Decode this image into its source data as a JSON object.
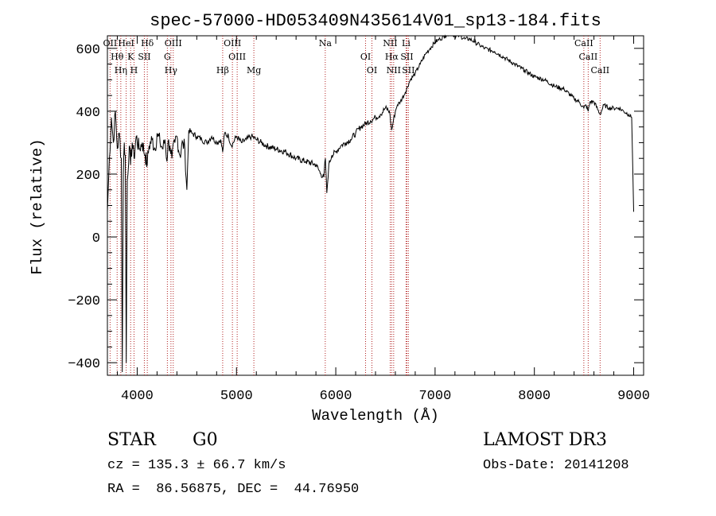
{
  "chart_data": {
    "type": "line",
    "title": "spec-57000-HD053409N435614V01_sp13-184.fits",
    "xlabel": "Wavelength (Å)",
    "ylabel": "Flux (relative)",
    "xlim": [
      3700,
      9100
    ],
    "ylim": [
      -440,
      640
    ],
    "x_ticks": [
      4000,
      5000,
      6000,
      7000,
      8000,
      9000
    ],
    "y_ticks": [
      -400,
      -200,
      0,
      200,
      400,
      600
    ],
    "x_tick_labels": [
      "4000",
      "5000",
      "6000",
      "7000",
      "8000",
      "9000"
    ],
    "y_tick_labels": [
      "−400",
      "−200",
      "0",
      "200",
      "400",
      "600"
    ],
    "series": [
      {
        "name": "spectrum",
        "x": [
          3700,
          3720,
          3740,
          3760,
          3780,
          3800,
          3820,
          3840,
          3850,
          3860,
          3870,
          3880,
          3890,
          3900,
          3920,
          3933,
          3950,
          3968,
          3990,
          4020,
          4050,
          4080,
          4101,
          4120,
          4150,
          4180,
          4200,
          4230,
          4260,
          4280,
          4300,
          4310,
          4330,
          4350,
          4380,
          4400,
          4430,
          4460,
          4480,
          4500,
          4520,
          4550,
          4600,
          4650,
          4700,
          4750,
          4800,
          4840,
          4861,
          4880,
          4920,
          4950,
          5000,
          5050,
          5100,
          5150,
          5200,
          5250,
          5300,
          5400,
          5500,
          5600,
          5700,
          5800,
          5850,
          5880,
          5895,
          5910,
          5930,
          5960,
          6000,
          6050,
          6100,
          6150,
          6200,
          6250,
          6300,
          6350,
          6400,
          6450,
          6500,
          6540,
          6563,
          6580,
          6600,
          6620,
          6650,
          6700,
          6750,
          6800,
          6850,
          6900,
          6950,
          7000,
          7050,
          7100,
          7150,
          7200,
          7250,
          7300,
          7350,
          7400,
          7450,
          7500,
          7600,
          7700,
          7800,
          7900,
          8000,
          8100,
          8200,
          8300,
          8400,
          8450,
          8498,
          8520,
          8542,
          8560,
          8600,
          8662,
          8700,
          8750,
          8800,
          8850,
          8900,
          8950,
          8980,
          9000
        ],
        "y": [
          80,
          250,
          380,
          300,
          400,
          280,
          330,
          250,
          -430,
          200,
          300,
          260,
          -400,
          180,
          290,
          230,
          300,
          250,
          320,
          280,
          300,
          260,
          230,
          290,
          310,
          280,
          330,
          300,
          280,
          310,
          240,
          300,
          290,
          250,
          300,
          320,
          260,
          300,
          280,
          150,
          340,
          330,
          320,
          310,
          300,
          320,
          300,
          310,
          270,
          330,
          320,
          290,
          320,
          300,
          310,
          320,
          310,
          300,
          290,
          280,
          270,
          250,
          240,
          230,
          200,
          190,
          250,
          140,
          230,
          260,
          270,
          290,
          300,
          310,
          330,
          350,
          360,
          370,
          380,
          390,
          410,
          400,
          340,
          370,
          400,
          420,
          430,
          460,
          500,
          520,
          550,
          580,
          600,
          620,
          630,
          640,
          650,
          640,
          640,
          630,
          630,
          620,
          610,
          600,
          590,
          570,
          550,
          530,
          510,
          500,
          480,
          470,
          440,
          430,
          410,
          420,
          400,
          430,
          430,
          390,
          420,
          410,
          410,
          410,
          400,
          390,
          380,
          80
        ],
        "color": "#000000"
      }
    ],
    "lines": [
      {
        "name": "OII",
        "wave": 3727
      },
      {
        "name": "Hθ",
        "wave": 3798
      },
      {
        "name": "Hη",
        "wave": 3835
      },
      {
        "name": "HeI",
        "wave": 3889
      },
      {
        "name": "K",
        "wave": 3934
      },
      {
        "name": "H",
        "wave": 3968
      },
      {
        "name": "Hδ",
        "wave": 4102
      },
      {
        "name": "SII",
        "wave": 4072
      },
      {
        "name": "Hγ",
        "wave": 4340
      },
      {
        "name": "OIII",
        "wave": 4363
      },
      {
        "name": "G",
        "wave": 4304
      },
      {
        "name": "Hβ",
        "wave": 4861
      },
      {
        "name": "OIII",
        "wave": 4959
      },
      {
        "name": "OIII",
        "wave": 5007
      },
      {
        "name": "Mg",
        "wave": 5175
      },
      {
        "name": "Na",
        "wave": 5894
      },
      {
        "name": "OI",
        "wave": 6300
      },
      {
        "name": "OI",
        "wave": 6364
      },
      {
        "name": "NII",
        "wave": 6548
      },
      {
        "name": "Hα",
        "wave": 6563
      },
      {
        "name": "NII",
        "wave": 6583
      },
      {
        "name": "Li",
        "wave": 6708
      },
      {
        "name": "SII",
        "wave": 6716
      },
      {
        "name": "SII",
        "wave": 6731
      },
      {
        "name": "CaII",
        "wave": 8498
      },
      {
        "name": "CaII",
        "wave": 8542
      },
      {
        "name": "CaII",
        "wave": 8662
      }
    ],
    "line_color": "#b22222"
  },
  "info": {
    "class": "STAR",
    "subclass": "G0",
    "survey": "LAMOST DR3",
    "cz": "cz = 135.3 ± 66.7 km/s",
    "obs_date": "Obs-Date: 20141208",
    "radec": "RA =  86.56875, DEC =  44.76950"
  }
}
